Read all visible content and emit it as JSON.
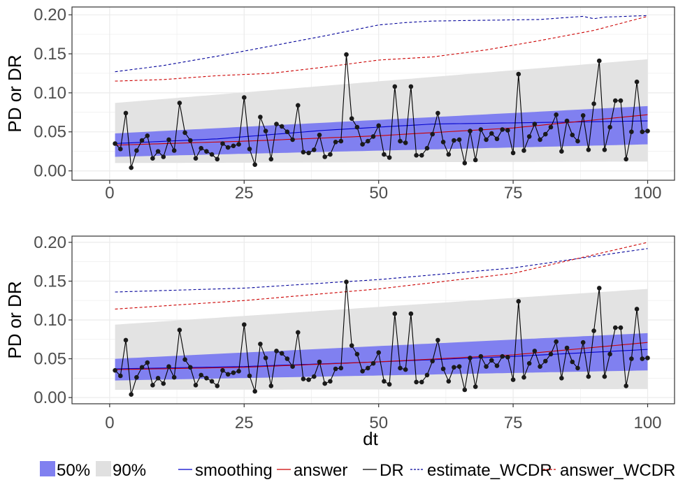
{
  "chart_data": [
    {
      "type": "line",
      "panel": "top",
      "xlabel": "",
      "ylabel": "PD or DR",
      "xlim": [
        -7,
        105
      ],
      "ylim": [
        -0.012,
        0.21
      ],
      "x_ticks": [
        0,
        25,
        50,
        75,
        100
      ],
      "x_tick_labels": [
        "0",
        "25",
        "50",
        "75",
        "100"
      ],
      "y_ticks": [
        0.0,
        0.05,
        0.1,
        0.15,
        0.2
      ],
      "y_tick_labels": [
        "0.00",
        "0.05",
        "0.10",
        "0.15",
        "0.20"
      ],
      "grid": true,
      "x": [
        1,
        2,
        3,
        4,
        5,
        6,
        7,
        8,
        9,
        10,
        11,
        12,
        13,
        14,
        15,
        16,
        17,
        18,
        19,
        20,
        21,
        22,
        23,
        24,
        25,
        26,
        27,
        28,
        29,
        30,
        31,
        32,
        33,
        34,
        35,
        36,
        37,
        38,
        39,
        40,
        41,
        42,
        43,
        44,
        45,
        46,
        47,
        48,
        49,
        50,
        51,
        52,
        53,
        54,
        55,
        56,
        57,
        58,
        59,
        60,
        61,
        62,
        63,
        64,
        65,
        66,
        67,
        68,
        69,
        70,
        71,
        72,
        73,
        74,
        75,
        76,
        77,
        78,
        79,
        80,
        81,
        82,
        83,
        84,
        85,
        86,
        87,
        88,
        89,
        90,
        91,
        92,
        93,
        94,
        95,
        96,
        97,
        98,
        99,
        100
      ],
      "band_90": {
        "x": [
          1,
          100
        ],
        "lower": [
          0.01,
          0.012
        ],
        "upper": [
          0.087,
          0.143
        ]
      },
      "band_50": {
        "x": [
          1,
          100
        ],
        "lower": [
          0.018,
          0.034
        ],
        "upper": [
          0.048,
          0.083
        ]
      },
      "series": [
        {
          "name": "DR",
          "style": "solid",
          "color": "#000000",
          "markers": true,
          "values": [
            0.035,
            0.028,
            0.074,
            0.004,
            0.026,
            0.039,
            0.045,
            0.016,
            0.025,
            0.018,
            0.04,
            0.026,
            0.087,
            0.049,
            0.039,
            0.016,
            0.029,
            0.025,
            0.021,
            0.015,
            0.035,
            0.03,
            0.032,
            0.034,
            0.094,
            0.028,
            0.008,
            0.069,
            0.051,
            0.015,
            0.06,
            0.057,
            0.05,
            0.04,
            0.084,
            0.024,
            0.023,
            0.027,
            0.046,
            0.018,
            0.021,
            0.037,
            0.038,
            0.149,
            0.067,
            0.056,
            0.034,
            0.038,
            0.044,
            0.058,
            0.021,
            0.017,
            0.108,
            0.038,
            0.036,
            0.108,
            0.02,
            0.02,
            0.029,
            0.047,
            0.074,
            0.037,
            0.021,
            0.039,
            0.04,
            0.01,
            0.051,
            0.014,
            0.053,
            0.04,
            0.048,
            0.041,
            0.053,
            0.052,
            0.023,
            0.124,
            0.026,
            0.044,
            0.06,
            0.04,
            0.047,
            0.056,
            0.072,
            0.025,
            0.064,
            0.046,
            0.038,
            0.071,
            0.027,
            0.086,
            0.141,
            0.027,
            0.056,
            0.09,
            0.09,
            0.015,
            0.05,
            0.114,
            0.05,
            0.051
          ]
        },
        {
          "name": "smoothing",
          "style": "solid",
          "color": "#0000cc",
          "x_points": [
            1,
            20,
            40,
            60,
            80,
            100
          ],
          "values_points": [
            0.035,
            0.041,
            0.052,
            0.06,
            0.062,
            0.064
          ]
        },
        {
          "name": "answer",
          "style": "solid",
          "color": "#cc0000",
          "x_points": [
            1,
            25,
            50,
            75,
            100
          ],
          "values_points": [
            0.033,
            0.038,
            0.045,
            0.055,
            0.072
          ]
        },
        {
          "name": "estimate_WCDR",
          "style": "dashed",
          "color": "#000099",
          "x_points": [
            1,
            10,
            20,
            30,
            40,
            50,
            55,
            60,
            70,
            80,
            88,
            90,
            92,
            100
          ],
          "values_points": [
            0.127,
            0.135,
            0.147,
            0.16,
            0.173,
            0.187,
            0.19,
            0.192,
            0.193,
            0.194,
            0.198,
            0.195,
            0.197,
            0.199
          ]
        },
        {
          "name": "answer_WCDR",
          "style": "dashed",
          "color": "#cc0000",
          "x_points": [
            1,
            10,
            20,
            30,
            40,
            50,
            60,
            70,
            80,
            90,
            100
          ],
          "values_points": [
            0.115,
            0.117,
            0.122,
            0.125,
            0.133,
            0.142,
            0.146,
            0.155,
            0.167,
            0.18,
            0.198
          ]
        }
      ]
    },
    {
      "type": "line",
      "panel": "bottom",
      "xlabel": "dt",
      "ylabel": "PD or DR",
      "xlim": [
        -7,
        105
      ],
      "ylim": [
        -0.008,
        0.208
      ],
      "x_ticks": [
        0,
        25,
        50,
        75,
        100
      ],
      "x_tick_labels": [
        "0",
        "25",
        "50",
        "75",
        "100"
      ],
      "y_ticks": [
        0.0,
        0.05,
        0.1,
        0.15,
        0.2
      ],
      "y_tick_labels": [
        "0.00",
        "0.05",
        "0.10",
        "0.15",
        "0.20"
      ],
      "grid": true,
      "x": [
        1,
        2,
        3,
        4,
        5,
        6,
        7,
        8,
        9,
        10,
        11,
        12,
        13,
        14,
        15,
        16,
        17,
        18,
        19,
        20,
        21,
        22,
        23,
        24,
        25,
        26,
        27,
        28,
        29,
        30,
        31,
        32,
        33,
        34,
        35,
        36,
        37,
        38,
        39,
        40,
        41,
        42,
        43,
        44,
        45,
        46,
        47,
        48,
        49,
        50,
        51,
        52,
        53,
        54,
        55,
        56,
        57,
        58,
        59,
        60,
        61,
        62,
        63,
        64,
        65,
        66,
        67,
        68,
        69,
        70,
        71,
        72,
        73,
        74,
        75,
        76,
        77,
        78,
        79,
        80,
        81,
        82,
        83,
        84,
        85,
        86,
        87,
        88,
        89,
        90,
        91,
        92,
        93,
        94,
        95,
        96,
        97,
        98,
        99,
        100
      ],
      "band_90": {
        "x": [
          1,
          100
        ],
        "lower": [
          0.01,
          0.011
        ],
        "upper": [
          0.094,
          0.14
        ]
      },
      "band_50": {
        "x": [
          1,
          100
        ],
        "lower": [
          0.022,
          0.035
        ],
        "upper": [
          0.05,
          0.083
        ]
      },
      "series": [
        {
          "name": "DR",
          "style": "solid",
          "color": "#000000",
          "markers": true,
          "values": [
            0.035,
            0.028,
            0.074,
            0.004,
            0.026,
            0.039,
            0.045,
            0.016,
            0.025,
            0.018,
            0.04,
            0.026,
            0.087,
            0.049,
            0.039,
            0.016,
            0.029,
            0.025,
            0.021,
            0.015,
            0.035,
            0.03,
            0.032,
            0.034,
            0.094,
            0.028,
            0.008,
            0.069,
            0.051,
            0.015,
            0.06,
            0.057,
            0.05,
            0.04,
            0.084,
            0.024,
            0.023,
            0.027,
            0.046,
            0.018,
            0.021,
            0.037,
            0.038,
            0.149,
            0.067,
            0.056,
            0.034,
            0.038,
            0.044,
            0.058,
            0.021,
            0.017,
            0.108,
            0.038,
            0.036,
            0.108,
            0.02,
            0.02,
            0.029,
            0.047,
            0.074,
            0.037,
            0.021,
            0.039,
            0.04,
            0.01,
            0.051,
            0.014,
            0.053,
            0.04,
            0.048,
            0.041,
            0.053,
            0.052,
            0.023,
            0.124,
            0.026,
            0.044,
            0.06,
            0.04,
            0.047,
            0.056,
            0.072,
            0.025,
            0.064,
            0.046,
            0.038,
            0.071,
            0.027,
            0.086,
            0.141,
            0.027,
            0.056,
            0.09,
            0.09,
            0.015,
            0.05,
            0.114,
            0.05,
            0.051
          ]
        },
        {
          "name": "smoothing",
          "style": "solid",
          "color": "#0000cc",
          "x_points": [
            1,
            25,
            50,
            75,
            100
          ],
          "values_points": [
            0.037,
            0.04,
            0.046,
            0.053,
            0.062
          ]
        },
        {
          "name": "answer",
          "style": "solid",
          "color": "#cc0000",
          "x_points": [
            1,
            25,
            50,
            75,
            100
          ],
          "values_points": [
            0.036,
            0.039,
            0.046,
            0.055,
            0.071
          ]
        },
        {
          "name": "estimate_WCDR",
          "style": "dashed",
          "color": "#000099",
          "x_points": [
            1,
            25,
            50,
            75,
            100
          ],
          "values_points": [
            0.136,
            0.141,
            0.152,
            0.167,
            0.192
          ]
        },
        {
          "name": "answer_WCDR",
          "style": "dashed",
          "color": "#cc0000",
          "x_points": [
            1,
            25,
            50,
            75,
            100
          ],
          "values_points": [
            0.114,
            0.125,
            0.14,
            0.16,
            0.2
          ]
        }
      ]
    }
  ],
  "legend": {
    "items": [
      {
        "label": "50%",
        "kind": "fill",
        "color": "#8080f0"
      },
      {
        "label": "90%",
        "kind": "fill",
        "color": "#e0e0e0"
      },
      {
        "label": "smoothing",
        "kind": "line",
        "color": "#0000cc",
        "style": "solid"
      },
      {
        "label": "answer",
        "kind": "line",
        "color": "#cc0000",
        "style": "solid"
      },
      {
        "label": "DR",
        "kind": "line",
        "color": "#000000",
        "style": "solid"
      },
      {
        "label": "estimate_WCDR",
        "kind": "line",
        "color": "#000099",
        "style": "dashed"
      },
      {
        "label": "answer_WCDR",
        "kind": "line",
        "color": "#cc0000",
        "style": "dashed"
      }
    ]
  },
  "colors": {
    "band_50": "#8080f0",
    "band_90": "#e3e3e3",
    "grid": "#ebebeb",
    "panel_border": "#333333"
  }
}
